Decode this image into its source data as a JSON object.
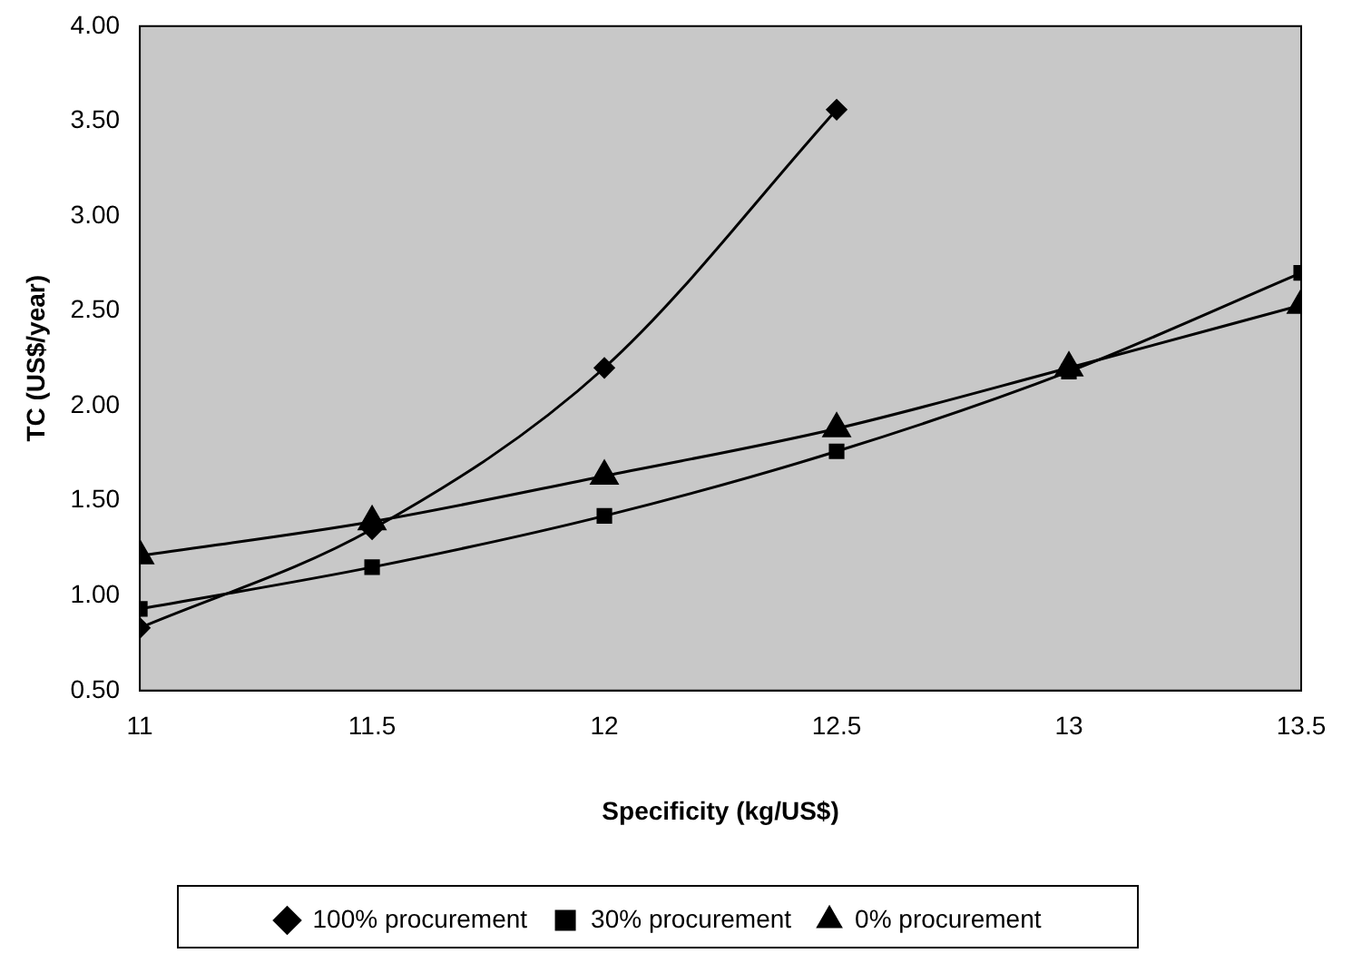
{
  "chart_data": {
    "type": "line",
    "xlabel": "Specificity (kg/US$)",
    "ylabel": "TC (US$/year)",
    "xlim": [
      11,
      13.5
    ],
    "xticks": [
      11,
      11.5,
      12,
      12.5,
      13,
      13.5
    ],
    "ylim": [
      0.5,
      4
    ],
    "yticks": [
      {
        "value": 0.5,
        "label": "0.50"
      },
      {
        "value": 1,
        "label": "1.00"
      },
      {
        "value": 1.5,
        "label": "1.50"
      },
      {
        "value": 2,
        "label": "2.00"
      },
      {
        "value": 2.5,
        "label": "2.50"
      },
      {
        "value": 3,
        "label": "3.00"
      },
      {
        "value": 3.5,
        "label": "3.50"
      },
      {
        "value": 4,
        "label": "4.00"
      }
    ],
    "x": [
      11,
      11.5,
      12,
      12.5,
      13,
      13.5
    ],
    "grid": false,
    "legend": "bottom",
    "series": [
      {
        "name": "100% procurement",
        "color": "#000000",
        "marker": "diamond",
        "values": [
          0.83,
          1.35,
          2.2,
          3.56,
          null,
          null
        ]
      },
      {
        "name": "30% procurement",
        "color": "#000000",
        "marker": "square",
        "values": [
          0.93,
          1.15,
          1.42,
          1.76,
          2.18,
          2.7
        ]
      },
      {
        "name": "0% procurement",
        "color": "#000000",
        "marker": "triangle",
        "values": [
          1.21,
          1.39,
          1.63,
          1.88,
          2.2,
          2.53
        ]
      }
    ]
  }
}
